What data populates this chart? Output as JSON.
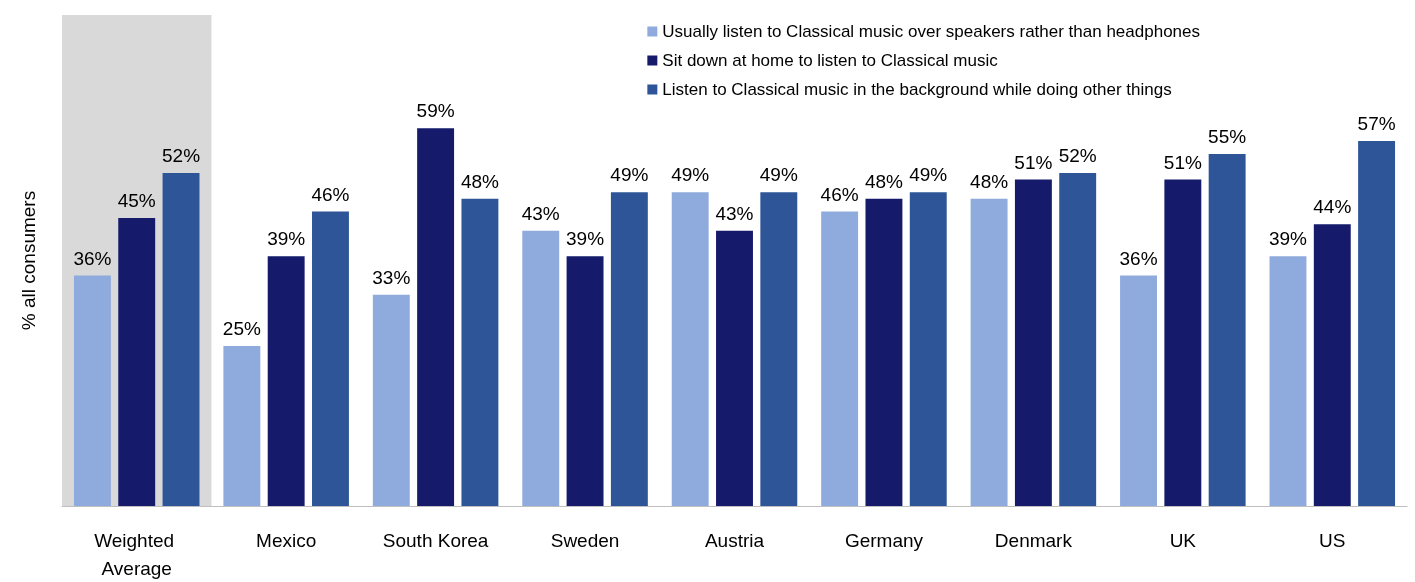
{
  "chart_data": {
    "type": "bar",
    "ylabel": "% all consumers",
    "categories": [
      "Weighted Average",
      "Mexico",
      "South Korea",
      "Sweden",
      "Austria",
      "Germany",
      "Denmark",
      "UK",
      "US"
    ],
    "series": [
      {
        "name": "Usually listen to Classical music over speakers rather than headphones",
        "color": "#8faadc",
        "values": [
          36,
          25,
          33,
          43,
          49,
          46,
          48,
          36,
          39
        ],
        "value_labels": [
          "36%",
          "25%",
          "33%",
          "43%",
          "49%",
          "46%",
          "48%",
          "36%",
          "39%"
        ]
      },
      {
        "name": "Sit down at home to listen to Classical music",
        "color": "#151a6b",
        "values": [
          45,
          39,
          59,
          39,
          43,
          48,
          51,
          51,
          44
        ],
        "value_labels": [
          "45%",
          "39%",
          "59%",
          "39%",
          "43%",
          "48%",
          "51%",
          "51%",
          "44%"
        ]
      },
      {
        "name": "Listen to Classical music in the background while doing other things",
        "color": "#2e5597",
        "values": [
          52,
          46,
          48,
          49,
          49,
          49,
          52,
          55,
          57
        ],
        "value_labels": [
          "52%",
          "46%",
          "48%",
          "49%",
          "49%",
          "49%",
          "52%",
          "55%",
          "57%"
        ]
      }
    ],
    "bands": [
      {
        "axis": "x",
        "from": "Weighted Average",
        "to": "Weighted Average",
        "color": "#d9d9d9"
      }
    ],
    "legend": "top right",
    "grid": false
  }
}
